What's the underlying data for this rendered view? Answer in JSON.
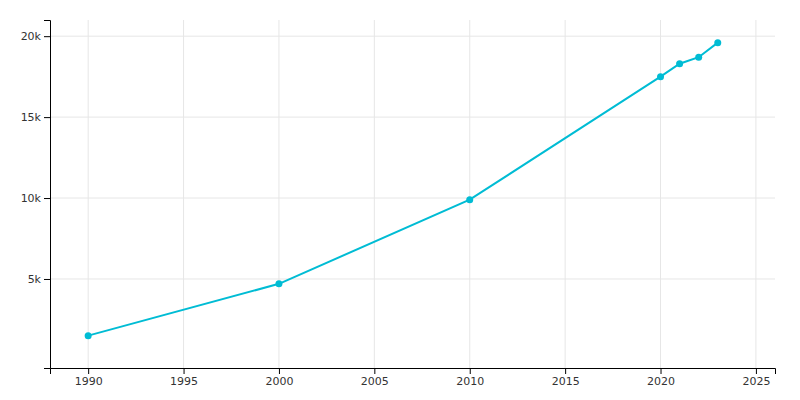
{
  "chart_data": {
    "type": "line",
    "x": [
      1990,
      2000,
      2010,
      2020,
      2021,
      2022,
      2023
    ],
    "values": [
      1500,
      4700,
      9900,
      17500,
      18300,
      18700,
      19600
    ],
    "color": "#00bcd4",
    "marker": "circle",
    "xlim": [
      1988,
      2026
    ],
    "ylim": [
      -500,
      21000
    ],
    "xticks": [
      1990,
      1995,
      2000,
      2005,
      2010,
      2015,
      2020,
      2025
    ],
    "yticks": [
      {
        "value": 5000,
        "label": "5k"
      },
      {
        "value": 10000,
        "label": "10k"
      },
      {
        "value": 15000,
        "label": "15k"
      },
      {
        "value": 20000,
        "label": "20k"
      }
    ],
    "grid": true
  }
}
